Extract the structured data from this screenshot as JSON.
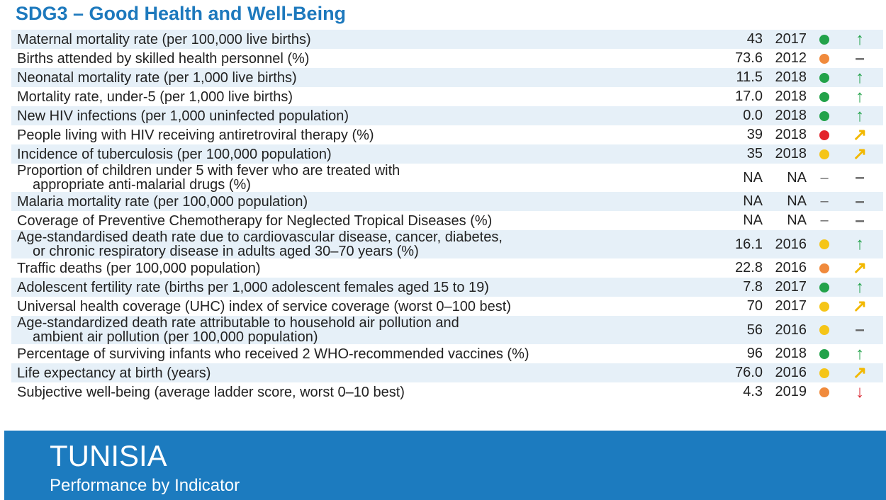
{
  "header": {
    "title": "SDG3 – Good Health and Well-Being"
  },
  "table": {
    "rows": [
      {
        "indicator": [
          "Maternal mortality rate (per 100,000 live births)"
        ],
        "value": "43",
        "year": "2017",
        "status": "#22a24a",
        "trend": "↑",
        "trend_color": "#22a24a"
      },
      {
        "indicator": [
          "Births attended by skilled health personnel (%)"
        ],
        "value": "73.6",
        "year": "2012",
        "status": "#f08a3c",
        "trend": "–",
        "trend_color": "#666666"
      },
      {
        "indicator": [
          "Neonatal mortality rate (per 1,000 live births)"
        ],
        "value": "11.5",
        "year": "2018",
        "status": "#22a24a",
        "trend": "↑",
        "trend_color": "#22a24a"
      },
      {
        "indicator": [
          "Mortality rate, under-5 (per 1,000 live births)"
        ],
        "value": "17.0",
        "year": "2018",
        "status": "#22a24a",
        "trend": "↑",
        "trend_color": "#22a24a"
      },
      {
        "indicator": [
          "New HIV infections (per 1,000 uninfected population)"
        ],
        "value": "0.0",
        "year": "2018",
        "status": "#22a24a",
        "trend": "↑",
        "trend_color": "#22a24a"
      },
      {
        "indicator": [
          "People living with HIV receiving antiretroviral therapy (%)"
        ],
        "value": "39",
        "year": "2018",
        "status": "#e3242b",
        "trend": "↗",
        "trend_color": "#f2b800"
      },
      {
        "indicator": [
          "Incidence of tuberculosis (per 100,000 population)"
        ],
        "value": "35",
        "year": "2018",
        "status": "#f5c518",
        "trend": "↗",
        "trend_color": "#f2b800"
      },
      {
        "indicator": [
          "Proportion of children under 5 with fever who are treated with",
          "appropriate anti-malarial drugs (%)"
        ],
        "value": "NA",
        "year": "NA",
        "status": "–",
        "trend": "–",
        "trend_color": "#666666"
      },
      {
        "indicator": [
          "Malaria mortality rate (per 100,000 population)"
        ],
        "value": "NA",
        "year": "NA",
        "status": "–",
        "trend": "–",
        "trend_color": "#666666"
      },
      {
        "indicator": [
          "Coverage of Preventive Chemotherapy for Neglected Tropical Diseases (%)"
        ],
        "value": "NA",
        "year": "NA",
        "status": "–",
        "trend": "–",
        "trend_color": "#666666"
      },
      {
        "indicator": [
          "Age-standardised death rate due to cardiovascular disease, cancer, diabetes,",
          "or chronic respiratory disease in adults aged 30–70 years (%)"
        ],
        "value": "16.1",
        "year": "2016",
        "status": "#f5c518",
        "trend": "↑",
        "trend_color": "#22a24a"
      },
      {
        "indicator": [
          "Traffic deaths (per 100,000 population)"
        ],
        "value": "22.8",
        "year": "2016",
        "status": "#f08a3c",
        "trend": "↗",
        "trend_color": "#f2b800"
      },
      {
        "indicator": [
          "Adolescent fertility rate (births per 1,000 adolescent females aged 15 to 19)"
        ],
        "value": "7.8",
        "year": "2017",
        "status": "#22a24a",
        "trend": "↑",
        "trend_color": "#22a24a"
      },
      {
        "indicator": [
          "Universal health coverage (UHC) index of service coverage (worst 0–100 best)"
        ],
        "value": "70",
        "year": "2017",
        "status": "#f5c518",
        "trend": "↗",
        "trend_color": "#f2b800"
      },
      {
        "indicator": [
          "Age-standardized death rate attributable to household air pollution and",
          "ambient air pollution (per 100,000 population)"
        ],
        "value": "56",
        "year": "2016",
        "status": "#f5c518",
        "trend": "–",
        "trend_color": "#666666"
      },
      {
        "indicator": [
          "Percentage of surviving infants who received 2 WHO-recommended vaccines (%)"
        ],
        "value": "96",
        "year": "2018",
        "status": "#22a24a",
        "trend": "↑",
        "trend_color": "#22a24a"
      },
      {
        "indicator": [
          "Life expectancy at birth (years)"
        ],
        "value": "76.0",
        "year": "2016",
        "status": "#f5c518",
        "trend": "↗",
        "trend_color": "#f2b800"
      },
      {
        "indicator": [
          "Subjective well-being (average ladder score, worst 0–10 best)"
        ],
        "value": "4.3",
        "year": "2019",
        "status": "#f08a3c",
        "trend": "↓",
        "trend_color": "#d9232e"
      }
    ]
  },
  "footer": {
    "country": "TUNISIA",
    "subtitle": "Performance by Indicator"
  }
}
